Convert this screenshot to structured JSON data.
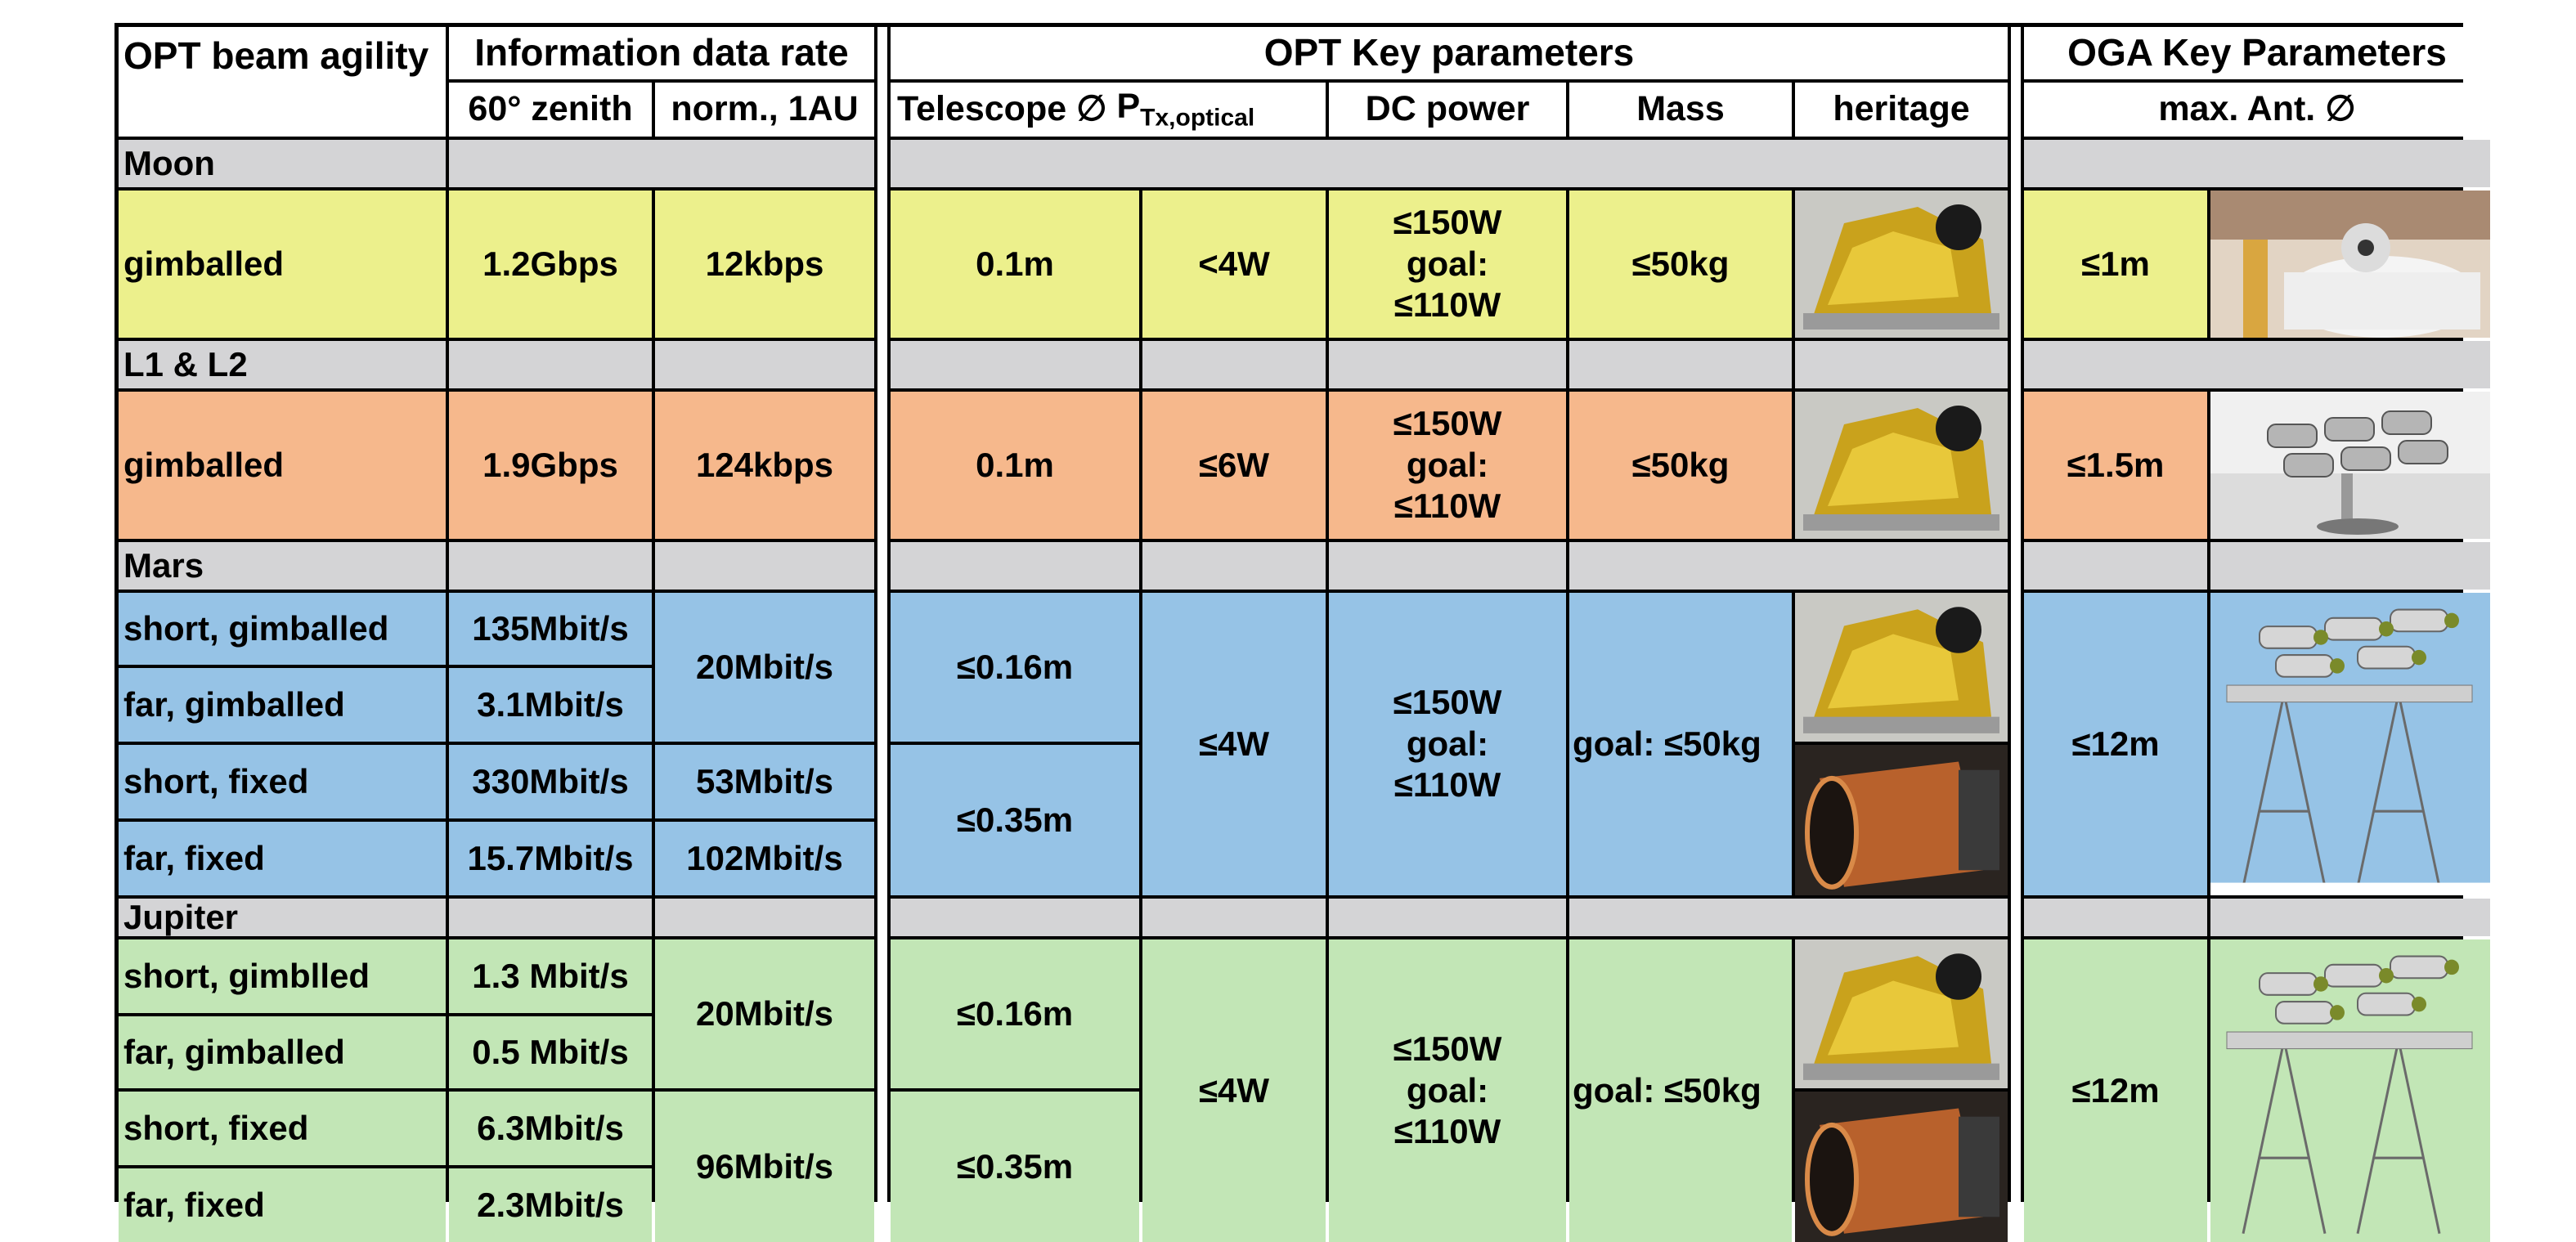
{
  "headers": {
    "beam_agility": "OPT beam agility",
    "info_rate": "Information data rate",
    "opt_key": "OPT Key parameters",
    "oga_key": "OGA Key Parameters",
    "zenith": "60° zenith",
    "norm": "norm., 1AU",
    "telescope": "Telescope ∅",
    "ptx_main": "P",
    "ptx_sub": "Tx,optical",
    "dc_power": "DC power",
    "mass": "Mass",
    "heritage": "heritage",
    "max_ant": "max. Ant. ∅"
  },
  "moon": {
    "section": "Moon",
    "agility": "gimballed",
    "zenith": "1.2Gbps",
    "norm": "12kbps",
    "telescope": "0.1m",
    "ptx": "<4W",
    "dc1": "≤150W",
    "dc2": "goal:",
    "dc3": "≤110W",
    "mass": "≤50kg",
    "ant": "≤1m"
  },
  "l1l2": {
    "section": "L1 & L2",
    "agility": "gimballed",
    "zenith": "1.9Gbps",
    "norm": "124kbps",
    "telescope": "0.1m",
    "ptx": "≤6W",
    "dc1": "≤150W",
    "dc2": "goal:",
    "dc3": "≤110W",
    "mass": "≤50kg",
    "ant": "≤1.5m"
  },
  "mars": {
    "section": "Mars",
    "rows": [
      {
        "agility": "short, gimballed",
        "zenith": "135Mbit/s"
      },
      {
        "agility": "far, gimballed",
        "zenith": "3.1Mbit/s"
      },
      {
        "agility": "short, fixed",
        "zenith": "330Mbit/s"
      },
      {
        "agility": "far, fixed",
        "zenith": "15.7Mbit/s"
      }
    ],
    "norm_gimballed": "20Mbit/s",
    "norm_short_fixed": "53Mbit/s",
    "norm_far_fixed": "102Mbit/s",
    "tel_gimballed": "≤0.16m",
    "tel_fixed": "≤0.35m",
    "ptx": "≤4W",
    "dc1": "≤150W",
    "dc2": "goal:",
    "dc3": "≤110W",
    "mass": "goal: ≤50kg",
    "ant": "≤12m"
  },
  "jupiter": {
    "section": "Jupiter",
    "rows": [
      {
        "agility": "short, gimblled",
        "zenith": "1.3 Mbit/s"
      },
      {
        "agility": "far, gimballed",
        "zenith": "0.5 Mbit/s"
      },
      {
        "agility": "short, fixed",
        "zenith": "6.3Mbit/s"
      },
      {
        "agility": "far, fixed",
        "zenith": "2.3Mbit/s"
      }
    ],
    "norm_gimballed": "20Mbit/s",
    "norm_fixed": "96Mbit/s",
    "tel_gimballed": "≤0.16m",
    "tel_fixed": "≤0.35m",
    "ptx": "≤4W",
    "dc1": "≤150W",
    "dc2": "goal:",
    "dc3": "≤110W",
    "mass": "goal: ≤50kg",
    "ant": "≤12m"
  },
  "colors": {
    "moon": "#ecf08c",
    "l1l2": "#f6b88c",
    "mars": "#96c3e6",
    "jupiter": "#c2e6b6",
    "section": "#d4d4d6"
  }
}
